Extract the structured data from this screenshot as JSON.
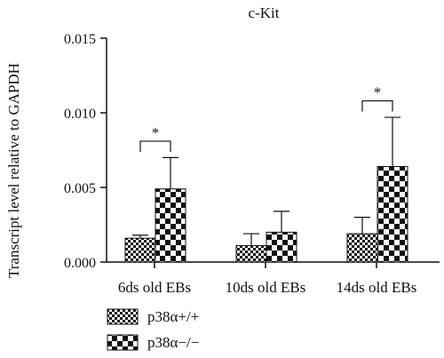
{
  "chart_data": {
    "type": "bar",
    "title": "c-Kit",
    "ylabel": "Transcript level relative to GAPDH",
    "xlabel": "",
    "ylim": [
      0,
      0.015
    ],
    "yticks": [
      "0.000",
      "0.005",
      "0.010",
      "0.015"
    ],
    "categories": [
      "6ds old EBs",
      "10ds old EBs",
      "14ds old EBs"
    ],
    "series": [
      {
        "name": "p38α+/+",
        "values": [
          0.0016,
          0.0011,
          0.0019
        ],
        "errors": [
          0.0002,
          0.0008,
          0.0011
        ],
        "pattern": "small-checker"
      },
      {
        "name": "p38α−/−",
        "values": [
          0.0049,
          0.002,
          0.0064
        ],
        "errors": [
          0.0021,
          0.0014,
          0.0033
        ],
        "pattern": "large-checker"
      }
    ],
    "annotations": [
      {
        "category": "6ds old EBs",
        "label": "*",
        "y": 0.0081
      },
      {
        "category": "14ds old EBs",
        "label": "*",
        "y": 0.0108
      }
    ],
    "grid": false,
    "legend_position": "bottom-left"
  }
}
